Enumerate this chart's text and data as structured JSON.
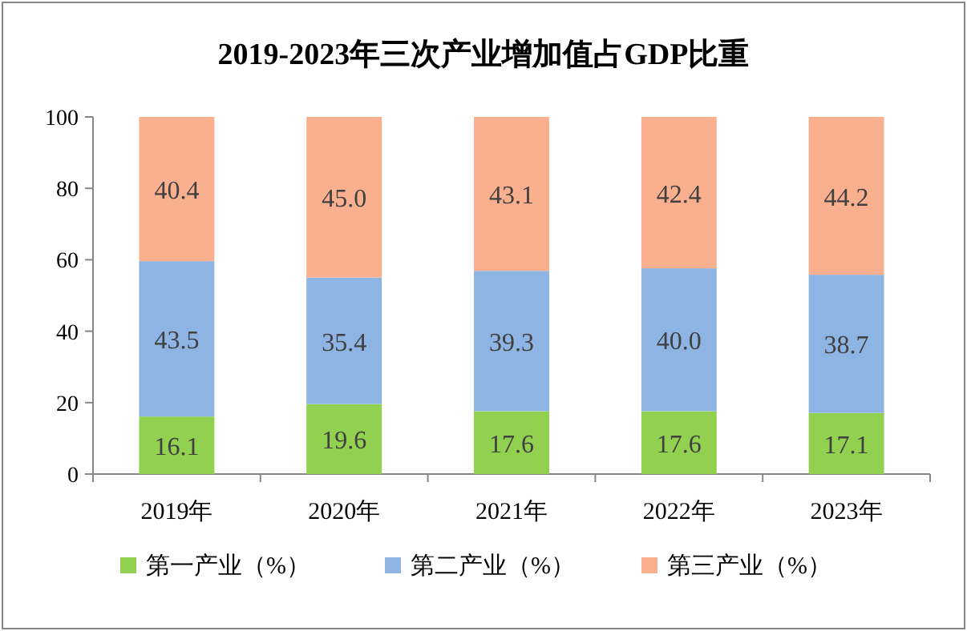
{
  "chart_data": {
    "type": "bar",
    "stacked": true,
    "title": "2019-2023年三次产业增加值占GDP比重",
    "categories": [
      "2019年",
      "2020年",
      "2021年",
      "2022年",
      "2023年"
    ],
    "series": [
      {
        "name": "第一产业（%）",
        "color": "#92d050",
        "values": [
          16.1,
          19.6,
          17.6,
          17.6,
          17.1
        ],
        "value_labels": [
          "16.1",
          "19.6",
          "17.6",
          "17.6",
          "17.1"
        ]
      },
      {
        "name": "第二产业（%）",
        "color": "#8eb4e3",
        "values": [
          43.5,
          35.4,
          39.3,
          40.0,
          38.7
        ],
        "value_labels": [
          "43.5",
          "35.4",
          "39.3",
          "40.0",
          "38.7"
        ]
      },
      {
        "name": "第三产业（%）",
        "color": "#fab08f",
        "values": [
          40.4,
          45.0,
          43.1,
          42.4,
          44.2
        ],
        "value_labels": [
          "40.4",
          "45.0",
          "43.1",
          "42.4",
          "44.2"
        ]
      }
    ],
    "ylim": [
      0,
      100
    ],
    "yticks": [
      0,
      20,
      40,
      60,
      80,
      100
    ],
    "grid": false,
    "legend": "bottom"
  }
}
